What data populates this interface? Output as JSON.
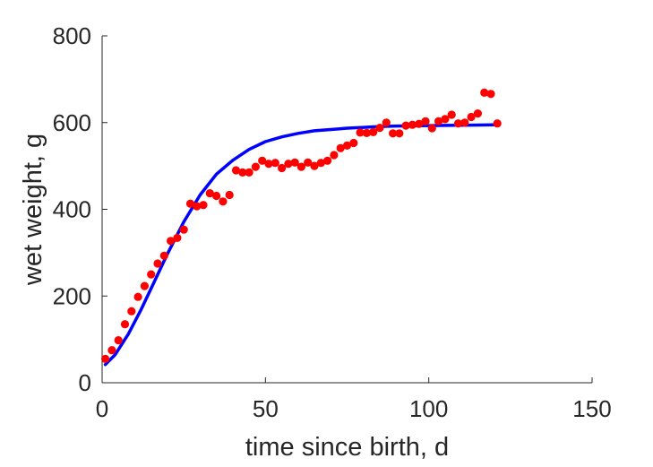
{
  "chart_data": {
    "type": "scatter",
    "title": "",
    "xlabel": "time since birth, d",
    "ylabel": "wet weight, g",
    "xlim": [
      0,
      150
    ],
    "ylim": [
      0,
      800
    ],
    "xticks": [
      0,
      50,
      100,
      150
    ],
    "yticks": [
      0,
      200,
      400,
      600,
      800
    ],
    "grid": false,
    "legend": "none",
    "series": [
      {
        "kind": "scatter",
        "color": "#ff0000",
        "x": [
          1,
          3,
          5,
          7,
          9,
          11,
          13,
          15,
          17,
          19,
          21,
          23,
          25,
          27,
          29,
          31,
          33,
          35,
          37,
          39,
          41,
          43,
          45,
          47,
          49,
          51,
          53,
          55,
          57,
          59,
          61,
          63,
          65,
          67,
          69,
          71,
          73,
          75,
          77,
          79,
          81,
          83,
          85,
          87,
          89,
          91,
          93,
          95,
          97,
          99,
          101,
          103,
          105,
          107,
          109,
          111,
          113,
          115,
          117,
          119,
          121
        ],
        "y": [
          55,
          75,
          98,
          135,
          165,
          198,
          223,
          250,
          275,
          293,
          327,
          334,
          353,
          413,
          407,
          410,
          437,
          431,
          418,
          433,
          490,
          485,
          485,
          498,
          512,
          505,
          507,
          495,
          505,
          508,
          498,
          508,
          500,
          507,
          512,
          525,
          541,
          547,
          553,
          577,
          576,
          578,
          588,
          600,
          575,
          575,
          593,
          595,
          597,
          603,
          587,
          603,
          608,
          618,
          598,
          600,
          613,
          621,
          669,
          666,
          598
        ]
      },
      {
        "kind": "line",
        "color": "#0000ff",
        "x": [
          1,
          4,
          8,
          12,
          16,
          20,
          25,
          30,
          35,
          40,
          45,
          50,
          55,
          60,
          65,
          70,
          75,
          80,
          85,
          90,
          100,
          110,
          120
        ],
        "y": [
          42,
          65,
          112,
          170,
          233,
          297,
          371,
          433,
          481,
          513,
          538,
          556,
          567,
          575,
          581,
          584,
          587,
          589,
          591,
          592,
          593,
          594,
          595
        ]
      }
    ]
  }
}
